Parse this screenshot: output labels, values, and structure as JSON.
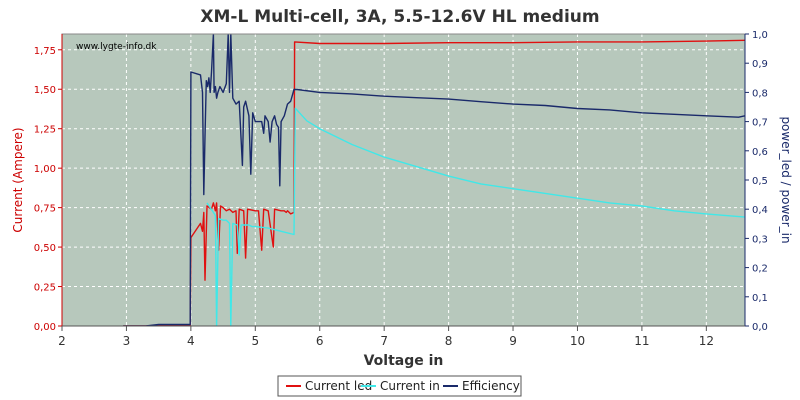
{
  "chart_data": {
    "type": "line",
    "title": "XM-L Multi-cell, 3A, 5.5-12.6V HL medium",
    "watermark": "www.lygte-info.dk",
    "xlabel": "Voltage in",
    "ylabel_left": "Current (Ampere)",
    "ylabel_right": "power_led / power_in",
    "xlim": [
      2,
      12.6
    ],
    "ylim_left": [
      0,
      1.85
    ],
    "ylim_right": [
      0,
      1.0
    ],
    "x_ticks": [
      "2",
      "3",
      "4",
      "5",
      "6",
      "7",
      "8",
      "9",
      "10",
      "11",
      "12"
    ],
    "y_left_ticks": [
      "0,00",
      "0,25",
      "0,50",
      "0,75",
      "1,00",
      "1,25",
      "1,50",
      "1,75"
    ],
    "y_right_ticks": [
      "0,0",
      "0,1",
      "0,2",
      "0,3",
      "0,4",
      "0,5",
      "0,6",
      "0,7",
      "0,8",
      "0,9",
      "1,0"
    ],
    "grid": true,
    "legend_position": "bottom",
    "colors": {
      "plot_bg": "#b7c8bc",
      "grid": "#ffffff",
      "left_axis": "#cc0000",
      "right_axis": "#1a2a6a",
      "current_led": "#e01010",
      "current_in": "#40e8e8",
      "efficiency": "#1a2a6a"
    },
    "series": [
      {
        "name": "Current led",
        "axis": "left",
        "points": [
          [
            2.95,
            0
          ],
          [
            3.3,
            0
          ],
          [
            3.5,
            0.005
          ],
          [
            3.99,
            0.005
          ],
          [
            4.0,
            0.56
          ],
          [
            4.1,
            0.62
          ],
          [
            4.15,
            0.65
          ],
          [
            4.18,
            0.6
          ],
          [
            4.2,
            0.72
          ],
          [
            4.22,
            0.29
          ],
          [
            4.25,
            0.76
          ],
          [
            4.32,
            0.74
          ],
          [
            4.35,
            0.78
          ],
          [
            4.38,
            0.73
          ],
          [
            4.4,
            0.78
          ],
          [
            4.43,
            0.48
          ],
          [
            4.46,
            0.76
          ],
          [
            4.5,
            0.75
          ],
          [
            4.55,
            0.73
          ],
          [
            4.6,
            0.74
          ],
          [
            4.65,
            0.72
          ],
          [
            4.7,
            0.73
          ],
          [
            4.72,
            0.46
          ],
          [
            4.75,
            0.74
          ],
          [
            4.82,
            0.73
          ],
          [
            4.85,
            0.43
          ],
          [
            4.88,
            0.74
          ],
          [
            5.0,
            0.73
          ],
          [
            5.05,
            0.73
          ],
          [
            5.1,
            0.48
          ],
          [
            5.13,
            0.74
          ],
          [
            5.2,
            0.73
          ],
          [
            5.28,
            0.5
          ],
          [
            5.3,
            0.74
          ],
          [
            5.4,
            0.73
          ],
          [
            5.45,
            0.73
          ],
          [
            5.48,
            0.72
          ],
          [
            5.5,
            0.73
          ],
          [
            5.55,
            0.71
          ],
          [
            5.6,
            0.72
          ],
          [
            5.61,
            1.8
          ],
          [
            6.0,
            1.79
          ],
          [
            7.0,
            1.79
          ],
          [
            8.0,
            1.795
          ],
          [
            9.0,
            1.795
          ],
          [
            10.0,
            1.8
          ],
          [
            11.0,
            1.8
          ],
          [
            12.0,
            1.805
          ],
          [
            12.6,
            1.81
          ]
        ]
      },
      {
        "name": "Current in",
        "axis": "left",
        "points": [
          [
            4.25,
            0.78
          ],
          [
            4.3,
            0.75
          ],
          [
            4.35,
            0.72
          ],
          [
            4.38,
            0.7
          ],
          [
            4.4,
            0
          ],
          [
            4.43,
            0.68
          ],
          [
            4.5,
            0.67
          ],
          [
            4.55,
            0.67
          ],
          [
            4.6,
            0.65
          ],
          [
            4.62,
            0
          ],
          [
            4.65,
            0.65
          ],
          [
            4.72,
            0.64
          ],
          [
            4.75,
            0.45
          ],
          [
            4.78,
            0.64
          ],
          [
            4.9,
            0.64
          ],
          [
            4.95,
            0.63
          ],
          [
            5.0,
            0.63
          ],
          [
            5.2,
            0.62
          ],
          [
            5.4,
            0.6
          ],
          [
            5.6,
            0.58
          ],
          [
            5.62,
            1.38
          ],
          [
            5.8,
            1.3
          ],
          [
            6.0,
            1.25
          ],
          [
            6.5,
            1.15
          ],
          [
            7.0,
            1.07
          ],
          [
            7.5,
            1.01
          ],
          [
            8.0,
            0.95
          ],
          [
            8.5,
            0.9
          ],
          [
            9.0,
            0.87
          ],
          [
            9.5,
            0.84
          ],
          [
            10.0,
            0.81
          ],
          [
            10.5,
            0.78
          ],
          [
            11.0,
            0.76
          ],
          [
            11.5,
            0.73
          ],
          [
            12.0,
            0.71
          ],
          [
            12.6,
            0.69
          ]
        ]
      },
      {
        "name": "Efficiency",
        "axis": "right",
        "points": [
          [
            2.95,
            0
          ],
          [
            3.3,
            0
          ],
          [
            3.5,
            0.005
          ],
          [
            3.99,
            0.005
          ],
          [
            4.0,
            0.87
          ],
          [
            4.15,
            0.86
          ],
          [
            4.18,
            0.8
          ],
          [
            4.2,
            0.45
          ],
          [
            4.22,
            0.65
          ],
          [
            4.24,
            0.84
          ],
          [
            4.26,
            0.82
          ],
          [
            4.28,
            0.85
          ],
          [
            4.3,
            0.8
          ],
          [
            4.32,
            0.87
          ],
          [
            4.35,
            1.0
          ],
          [
            4.36,
            0.8
          ],
          [
            4.38,
            0.82
          ],
          [
            4.4,
            0.78
          ],
          [
            4.42,
            0.8
          ],
          [
            4.45,
            0.82
          ],
          [
            4.5,
            0.8
          ],
          [
            4.55,
            0.83
          ],
          [
            4.58,
            1.0
          ],
          [
            4.6,
            0.8
          ],
          [
            4.62,
            1.0
          ],
          [
            4.65,
            0.78
          ],
          [
            4.7,
            0.76
          ],
          [
            4.75,
            0.77
          ],
          [
            4.8,
            0.55
          ],
          [
            4.82,
            0.75
          ],
          [
            4.85,
            0.77
          ],
          [
            4.9,
            0.72
          ],
          [
            4.93,
            0.52
          ],
          [
            4.96,
            0.73
          ],
          [
            5.0,
            0.7
          ],
          [
            5.05,
            0.7
          ],
          [
            5.1,
            0.7
          ],
          [
            5.13,
            0.66
          ],
          [
            5.15,
            0.72
          ],
          [
            5.2,
            0.7
          ],
          [
            5.23,
            0.63
          ],
          [
            5.26,
            0.7
          ],
          [
            5.3,
            0.72
          ],
          [
            5.33,
            0.69
          ],
          [
            5.36,
            0.68
          ],
          [
            5.38,
            0.48
          ],
          [
            5.4,
            0.7
          ],
          [
            5.45,
            0.72
          ],
          [
            5.5,
            0.76
          ],
          [
            5.55,
            0.77
          ],
          [
            5.6,
            0.81
          ],
          [
            5.65,
            0.81
          ],
          [
            6.0,
            0.8
          ],
          [
            6.5,
            0.795
          ],
          [
            7.0,
            0.787
          ],
          [
            7.5,
            0.782
          ],
          [
            8.0,
            0.777
          ],
          [
            8.5,
            0.768
          ],
          [
            9.0,
            0.76
          ],
          [
            9.5,
            0.755
          ],
          [
            10.0,
            0.745
          ],
          [
            10.5,
            0.74
          ],
          [
            11.0,
            0.73
          ],
          [
            11.5,
            0.725
          ],
          [
            12.0,
            0.72
          ],
          [
            12.5,
            0.715
          ],
          [
            12.6,
            0.72
          ]
        ]
      }
    ]
  }
}
